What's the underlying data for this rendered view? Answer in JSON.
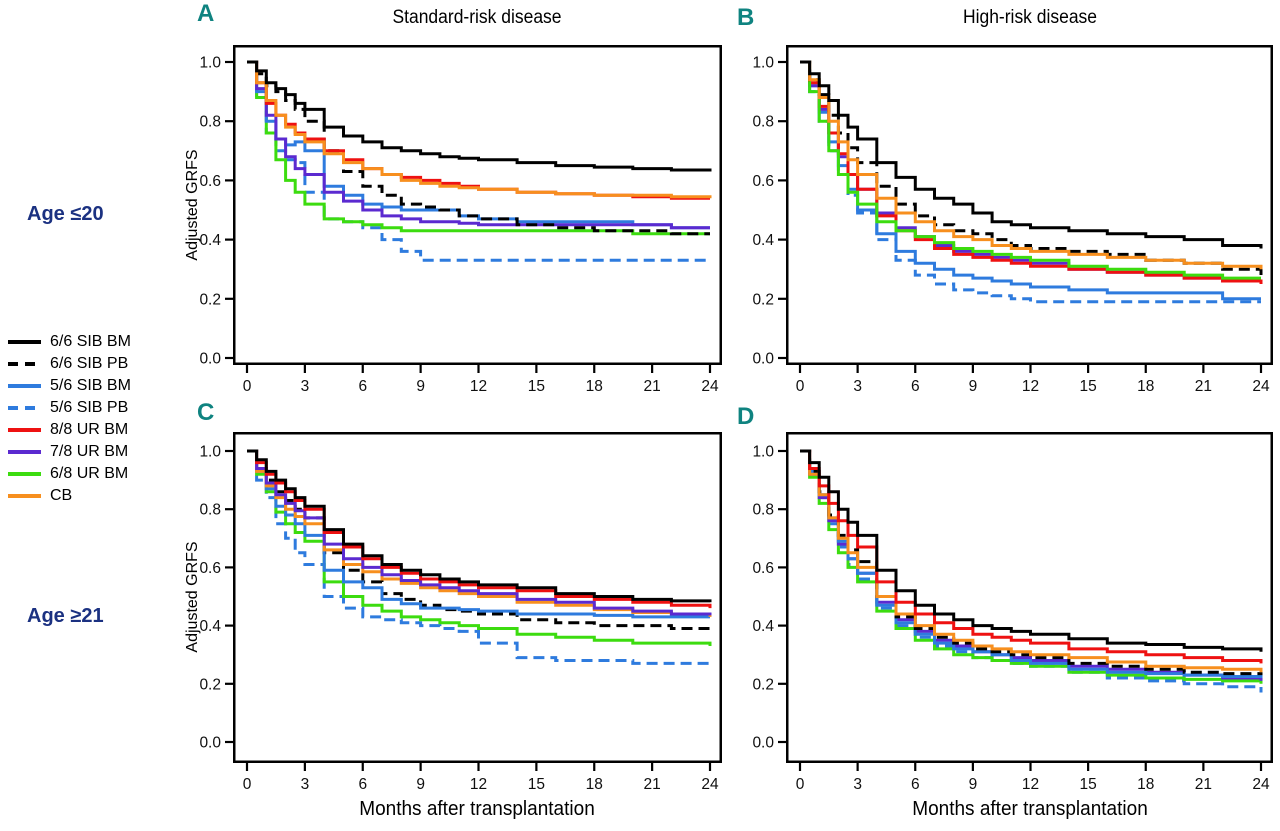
{
  "figure": {
    "ylabel": "Adjusted GRFS",
    "xlabel": "Months after transplantation",
    "row_labels": [
      {
        "text": "Age ≤20"
      },
      {
        "text": "Age ≥21"
      }
    ],
    "colors": {
      "panel_letter": "#0F8380",
      "row_label": "#1B3181",
      "axis": "#000000",
      "background": "#FFFFFF"
    }
  },
  "legend": [
    {
      "name": "6/6 SIB BM",
      "color": "#000000",
      "dash": "solid"
    },
    {
      "name": "6/6 SIB PB",
      "color": "#000000",
      "dash": "dashed"
    },
    {
      "name": "5/6 SIB BM",
      "color": "#2E7BDE",
      "dash": "solid"
    },
    {
      "name": "5/6 SIB PB",
      "color": "#2E7BDE",
      "dash": "dashed"
    },
    {
      "name": "8/8 UR BM",
      "color": "#EE1111",
      "dash": "solid"
    },
    {
      "name": "7/8 UR BM",
      "color": "#5B2AD0",
      "dash": "solid"
    },
    {
      "name": "6/8 UR BM",
      "color": "#3CDC0F",
      "dash": "solid"
    },
    {
      "name": "CB",
      "color": "#F78F1E",
      "dash": "solid"
    }
  ],
  "chart_data": [
    {
      "type": "line",
      "panel": "A",
      "title": "Standard-risk disease",
      "row_label": "Age ≤20",
      "xlabel": "",
      "ylabel": "Adjusted GRFS",
      "xlim": [
        0,
        24
      ],
      "ylim": [
        0.0,
        1.0
      ],
      "x_ticks": [
        0,
        3,
        6,
        9,
        12,
        15,
        18,
        21,
        24
      ],
      "y_ticks": [
        0.0,
        0.2,
        0.4,
        0.6,
        0.8,
        1.0
      ],
      "grid": false,
      "x": [
        0,
        0.5,
        1,
        1.5,
        2,
        2.5,
        3,
        4,
        5,
        6,
        7,
        8,
        9,
        10,
        11,
        12,
        14,
        16,
        18,
        20,
        22,
        24
      ],
      "series": [
        {
          "name": "5/6 SIB PB",
          "values": [
            1.0,
            0.88,
            0.76,
            0.7,
            0.67,
            0.66,
            0.56,
            0.47,
            0.46,
            0.44,
            0.4,
            0.36,
            0.33,
            0.33,
            0.33,
            0.33,
            0.33,
            0.33,
            0.33,
            0.33,
            0.33,
            0.33
          ]
        },
        {
          "name": "6/8 UR BM",
          "values": [
            1.0,
            0.88,
            0.76,
            0.67,
            0.6,
            0.56,
            0.52,
            0.47,
            0.46,
            0.45,
            0.44,
            0.43,
            0.43,
            0.43,
            0.43,
            0.43,
            0.43,
            0.43,
            0.43,
            0.42,
            0.42,
            0.42
          ]
        },
        {
          "name": "5/6 SIB BM",
          "values": [
            1.0,
            0.9,
            0.8,
            0.74,
            0.72,
            0.73,
            0.7,
            0.58,
            0.55,
            0.52,
            0.51,
            0.5,
            0.5,
            0.5,
            0.48,
            0.47,
            0.46,
            0.46,
            0.46,
            0.45,
            0.44,
            0.44
          ]
        },
        {
          "name": "7/8 UR BM",
          "values": [
            1.0,
            0.91,
            0.82,
            0.74,
            0.68,
            0.64,
            0.62,
            0.56,
            0.53,
            0.5,
            0.48,
            0.47,
            0.46,
            0.46,
            0.455,
            0.45,
            0.45,
            0.45,
            0.45,
            0.45,
            0.44,
            0.44
          ]
        },
        {
          "name": "6/6 SIB PB",
          "values": [
            1.0,
            0.96,
            0.92,
            0.9,
            0.87,
            0.84,
            0.8,
            0.7,
            0.63,
            0.58,
            0.55,
            0.52,
            0.51,
            0.5,
            0.48,
            0.47,
            0.45,
            0.44,
            0.43,
            0.43,
            0.42,
            0.42
          ]
        },
        {
          "name": "8/8 UR BM",
          "values": [
            1.0,
            0.93,
            0.86,
            0.82,
            0.79,
            0.76,
            0.74,
            0.7,
            0.67,
            0.64,
            0.62,
            0.61,
            0.6,
            0.59,
            0.58,
            0.57,
            0.56,
            0.555,
            0.55,
            0.545,
            0.54,
            0.54
          ]
        },
        {
          "name": "CB",
          "values": [
            1.0,
            0.93,
            0.87,
            0.82,
            0.78,
            0.755,
            0.73,
            0.69,
            0.66,
            0.64,
            0.62,
            0.6,
            0.59,
            0.58,
            0.575,
            0.57,
            0.56,
            0.555,
            0.55,
            0.55,
            0.545,
            0.54
          ]
        },
        {
          "name": "6/6 SIB BM",
          "values": [
            1.0,
            0.97,
            0.93,
            0.91,
            0.89,
            0.86,
            0.84,
            0.78,
            0.75,
            0.73,
            0.71,
            0.7,
            0.69,
            0.68,
            0.675,
            0.67,
            0.66,
            0.65,
            0.645,
            0.64,
            0.635,
            0.63
          ]
        }
      ]
    },
    {
      "type": "line",
      "panel": "B",
      "title": "High-risk disease",
      "row_label": "Age ≤20",
      "xlabel": "",
      "ylabel": "",
      "xlim": [
        0,
        24
      ],
      "ylim": [
        0.0,
        1.0
      ],
      "x_ticks": [
        0,
        3,
        6,
        9,
        12,
        15,
        18,
        21,
        24
      ],
      "y_ticks": [
        0.0,
        0.2,
        0.4,
        0.6,
        0.8,
        1.0
      ],
      "grid": false,
      "x": [
        0,
        0.5,
        1,
        1.5,
        2,
        2.5,
        3,
        4,
        5,
        6,
        7,
        8,
        9,
        10,
        11,
        12,
        14,
        16,
        18,
        20,
        22,
        24
      ],
      "series": [
        {
          "name": "5/6 SIB PB",
          "values": [
            1.0,
            0.9,
            0.8,
            0.7,
            0.62,
            0.55,
            0.49,
            0.4,
            0.33,
            0.28,
            0.25,
            0.23,
            0.22,
            0.21,
            0.2,
            0.19,
            0.19,
            0.19,
            0.19,
            0.19,
            0.19,
            0.19
          ]
        },
        {
          "name": "5/6 SIB BM",
          "values": [
            1.0,
            0.92,
            0.83,
            0.73,
            0.65,
            0.57,
            0.5,
            0.42,
            0.36,
            0.32,
            0.3,
            0.28,
            0.27,
            0.26,
            0.25,
            0.24,
            0.23,
            0.22,
            0.22,
            0.22,
            0.2,
            0.2
          ]
        },
        {
          "name": "7/8 UR BM",
          "values": [
            1.0,
            0.92,
            0.84,
            0.76,
            0.68,
            0.62,
            0.57,
            0.49,
            0.44,
            0.41,
            0.38,
            0.36,
            0.35,
            0.34,
            0.33,
            0.32,
            0.3,
            0.29,
            0.28,
            0.27,
            0.26,
            0.25
          ]
        },
        {
          "name": "8/8 UR BM",
          "values": [
            1.0,
            0.93,
            0.85,
            0.76,
            0.69,
            0.62,
            0.57,
            0.48,
            0.43,
            0.4,
            0.37,
            0.35,
            0.34,
            0.33,
            0.32,
            0.31,
            0.3,
            0.29,
            0.28,
            0.27,
            0.26,
            0.25
          ]
        },
        {
          "name": "6/8 UR BM",
          "values": [
            1.0,
            0.9,
            0.8,
            0.7,
            0.62,
            0.56,
            0.52,
            0.46,
            0.43,
            0.41,
            0.39,
            0.37,
            0.36,
            0.35,
            0.34,
            0.33,
            0.31,
            0.3,
            0.29,
            0.28,
            0.27,
            0.27
          ]
        },
        {
          "name": "6/6 SIB PB",
          "values": [
            1.0,
            0.94,
            0.89,
            0.82,
            0.76,
            0.71,
            0.66,
            0.58,
            0.52,
            0.48,
            0.45,
            0.43,
            0.42,
            0.4,
            0.38,
            0.37,
            0.36,
            0.35,
            0.33,
            0.32,
            0.3,
            0.28
          ]
        },
        {
          "name": "CB",
          "values": [
            1.0,
            0.94,
            0.88,
            0.8,
            0.73,
            0.67,
            0.62,
            0.54,
            0.49,
            0.46,
            0.43,
            0.41,
            0.4,
            0.38,
            0.37,
            0.36,
            0.35,
            0.34,
            0.33,
            0.32,
            0.31,
            0.3
          ]
        },
        {
          "name": "6/6 SIB BM",
          "values": [
            1.0,
            0.96,
            0.92,
            0.87,
            0.82,
            0.78,
            0.74,
            0.66,
            0.61,
            0.57,
            0.54,
            0.52,
            0.49,
            0.46,
            0.45,
            0.44,
            0.43,
            0.42,
            0.41,
            0.4,
            0.38,
            0.37
          ]
        }
      ]
    },
    {
      "type": "line",
      "panel": "C",
      "title": "Standard-risk disease",
      "row_label": "Age ≥21",
      "xlabel": "Months after transplantation",
      "ylabel": "Adjusted GRFS",
      "xlim": [
        0,
        24
      ],
      "ylim": [
        0.0,
        1.0
      ],
      "x_ticks": [
        0,
        3,
        6,
        9,
        12,
        15,
        18,
        21,
        24
      ],
      "y_ticks": [
        0.0,
        0.2,
        0.4,
        0.6,
        0.8,
        1.0
      ],
      "grid": false,
      "x": [
        0,
        0.5,
        1,
        1.5,
        2,
        2.5,
        3,
        4,
        5,
        6,
        7,
        8,
        9,
        10,
        11,
        12,
        14,
        16,
        18,
        20,
        22,
        24
      ],
      "series": [
        {
          "name": "5/6 SIB PB",
          "values": [
            1.0,
            0.9,
            0.84,
            0.75,
            0.7,
            0.65,
            0.61,
            0.5,
            0.46,
            0.43,
            0.42,
            0.41,
            0.4,
            0.39,
            0.38,
            0.34,
            0.29,
            0.28,
            0.28,
            0.27,
            0.27,
            0.26
          ]
        },
        {
          "name": "6/8 UR BM",
          "values": [
            1.0,
            0.92,
            0.86,
            0.79,
            0.75,
            0.72,
            0.69,
            0.55,
            0.5,
            0.47,
            0.45,
            0.43,
            0.42,
            0.41,
            0.4,
            0.39,
            0.37,
            0.36,
            0.35,
            0.34,
            0.34,
            0.33
          ]
        },
        {
          "name": "6/6 SIB PB",
          "values": [
            1.0,
            0.94,
            0.9,
            0.86,
            0.83,
            0.8,
            0.77,
            0.65,
            0.59,
            0.55,
            0.51,
            0.49,
            0.47,
            0.455,
            0.45,
            0.44,
            0.42,
            0.41,
            0.4,
            0.4,
            0.39,
            0.39
          ]
        },
        {
          "name": "5/6 SIB BM",
          "values": [
            1.0,
            0.93,
            0.87,
            0.81,
            0.78,
            0.75,
            0.71,
            0.59,
            0.55,
            0.53,
            0.49,
            0.475,
            0.46,
            0.46,
            0.455,
            0.45,
            0.44,
            0.44,
            0.435,
            0.43,
            0.43,
            0.43
          ]
        },
        {
          "name": "CB",
          "values": [
            1.0,
            0.93,
            0.88,
            0.84,
            0.8,
            0.775,
            0.75,
            0.66,
            0.61,
            0.585,
            0.56,
            0.545,
            0.53,
            0.52,
            0.51,
            0.5,
            0.48,
            0.47,
            0.455,
            0.445,
            0.44,
            0.43
          ]
        },
        {
          "name": "7/8 UR BM",
          "values": [
            1.0,
            0.94,
            0.89,
            0.85,
            0.82,
            0.795,
            0.77,
            0.68,
            0.63,
            0.6,
            0.575,
            0.555,
            0.54,
            0.53,
            0.52,
            0.51,
            0.49,
            0.48,
            0.46,
            0.45,
            0.44,
            0.435
          ]
        },
        {
          "name": "8/8 UR BM",
          "values": [
            1.0,
            0.96,
            0.92,
            0.89,
            0.86,
            0.83,
            0.8,
            0.72,
            0.67,
            0.63,
            0.6,
            0.58,
            0.56,
            0.55,
            0.54,
            0.53,
            0.52,
            0.5,
            0.49,
            0.48,
            0.47,
            0.46
          ]
        },
        {
          "name": "6/6 SIB BM",
          "values": [
            1.0,
            0.97,
            0.93,
            0.9,
            0.87,
            0.84,
            0.81,
            0.73,
            0.68,
            0.64,
            0.61,
            0.59,
            0.575,
            0.56,
            0.55,
            0.54,
            0.53,
            0.51,
            0.5,
            0.49,
            0.485,
            0.48
          ]
        }
      ]
    },
    {
      "type": "line",
      "panel": "D",
      "title": "High-risk disease",
      "row_label": "Age ≥21",
      "xlabel": "Months after transplantation",
      "ylabel": "",
      "xlim": [
        0,
        24
      ],
      "ylim": [
        0.0,
        1.0
      ],
      "x_ticks": [
        0,
        3,
        6,
        9,
        12,
        15,
        18,
        21,
        24
      ],
      "y_ticks": [
        0.0,
        0.2,
        0.4,
        0.6,
        0.8,
        1.0
      ],
      "grid": false,
      "x": [
        0,
        0.5,
        1,
        1.5,
        2,
        2.5,
        3,
        4,
        5,
        6,
        7,
        8,
        9,
        10,
        11,
        12,
        14,
        16,
        18,
        20,
        22,
        24
      ],
      "series": [
        {
          "name": "5/6 SIB PB",
          "values": [
            1.0,
            0.92,
            0.84,
            0.75,
            0.67,
            0.61,
            0.56,
            0.46,
            0.4,
            0.36,
            0.33,
            0.31,
            0.29,
            0.28,
            0.27,
            0.26,
            0.24,
            0.22,
            0.21,
            0.2,
            0.19,
            0.17
          ]
        },
        {
          "name": "6/8 UR BM",
          "values": [
            1.0,
            0.91,
            0.82,
            0.73,
            0.65,
            0.6,
            0.55,
            0.45,
            0.39,
            0.35,
            0.32,
            0.3,
            0.29,
            0.28,
            0.27,
            0.26,
            0.24,
            0.23,
            0.22,
            0.215,
            0.21,
            0.2
          ]
        },
        {
          "name": "7/8 UR BM",
          "values": [
            1.0,
            0.92,
            0.84,
            0.76,
            0.68,
            0.63,
            0.58,
            0.48,
            0.42,
            0.38,
            0.35,
            0.33,
            0.31,
            0.3,
            0.29,
            0.28,
            0.26,
            0.25,
            0.24,
            0.23,
            0.22,
            0.21
          ]
        },
        {
          "name": "5/6 SIB BM",
          "values": [
            1.0,
            0.93,
            0.85,
            0.77,
            0.69,
            0.63,
            0.58,
            0.47,
            0.41,
            0.37,
            0.34,
            0.32,
            0.31,
            0.3,
            0.28,
            0.27,
            0.25,
            0.24,
            0.235,
            0.23,
            0.225,
            0.22
          ]
        },
        {
          "name": "6/6 SIB PB",
          "values": [
            1.0,
            0.93,
            0.86,
            0.78,
            0.71,
            0.66,
            0.62,
            0.5,
            0.43,
            0.39,
            0.36,
            0.34,
            0.32,
            0.31,
            0.3,
            0.29,
            0.27,
            0.26,
            0.25,
            0.24,
            0.235,
            0.23
          ]
        },
        {
          "name": "CB",
          "values": [
            1.0,
            0.92,
            0.85,
            0.77,
            0.7,
            0.65,
            0.6,
            0.5,
            0.44,
            0.4,
            0.37,
            0.35,
            0.33,
            0.32,
            0.31,
            0.3,
            0.29,
            0.275,
            0.26,
            0.255,
            0.25,
            0.24
          ]
        },
        {
          "name": "8/8 UR BM",
          "values": [
            1.0,
            0.94,
            0.88,
            0.82,
            0.76,
            0.71,
            0.67,
            0.55,
            0.48,
            0.44,
            0.41,
            0.39,
            0.37,
            0.36,
            0.35,
            0.34,
            0.32,
            0.31,
            0.3,
            0.29,
            0.28,
            0.27
          ]
        },
        {
          "name": "6/6 SIB BM",
          "values": [
            1.0,
            0.96,
            0.91,
            0.86,
            0.8,
            0.755,
            0.71,
            0.59,
            0.52,
            0.47,
            0.44,
            0.42,
            0.4,
            0.39,
            0.38,
            0.37,
            0.355,
            0.34,
            0.335,
            0.325,
            0.32,
            0.31
          ]
        }
      ]
    }
  ]
}
